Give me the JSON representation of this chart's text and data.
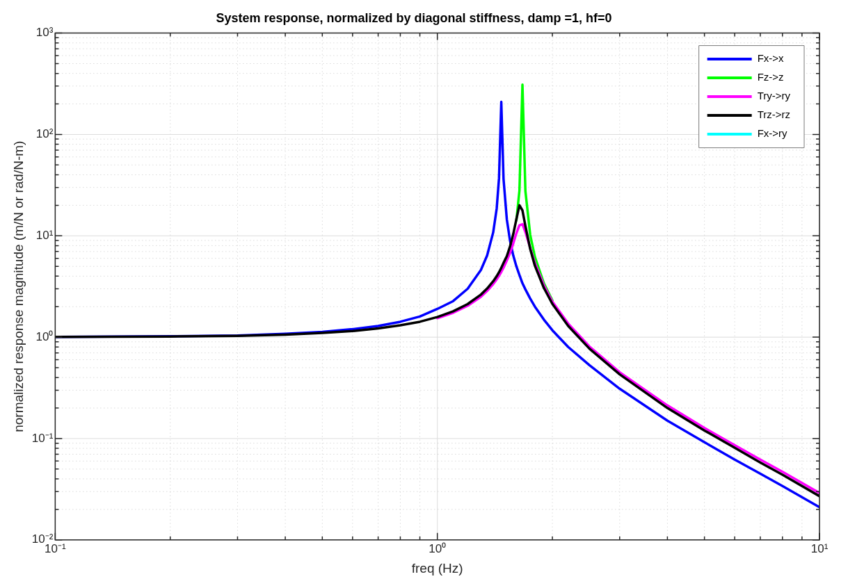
{
  "chart_data": {
    "type": "line",
    "title": "System response, normalized by diagonal stiffness, damp =1, hf=0",
    "xlabel": "freq (Hz)",
    "ylabel": "normalized response magnitude (m/N or rad/N-m)",
    "log": "xy",
    "grid": true,
    "legend": "top right",
    "marker": "none",
    "line_style": "solid",
    "xlim": [
      0.1,
      10
    ],
    "ylim": [
      0.01,
      1000
    ],
    "xticks": [
      {
        "value": 0.1,
        "label": "10⁻¹"
      },
      {
        "value": 0.2,
        "label": null
      },
      {
        "value": 0.3,
        "label": null
      },
      {
        "value": 0.4,
        "label": null
      },
      {
        "value": 0.5,
        "label": null
      },
      {
        "value": 0.6,
        "label": null
      },
      {
        "value": 0.7,
        "label": null
      },
      {
        "value": 0.8,
        "label": null
      },
      {
        "value": 0.9,
        "label": null
      },
      {
        "value": 1,
        "label": "10⁰"
      },
      {
        "value": 2,
        "label": null
      },
      {
        "value": 3,
        "label": null
      },
      {
        "value": 4,
        "label": null
      },
      {
        "value": 5,
        "label": null
      },
      {
        "value": 6,
        "label": null
      },
      {
        "value": 7,
        "label": null
      },
      {
        "value": 8,
        "label": null
      },
      {
        "value": 9,
        "label": null
      },
      {
        "value": 10,
        "label": "10¹"
      }
    ],
    "yticks": [
      {
        "value": 0.01,
        "label": "10⁻²"
      },
      {
        "value": 0.02,
        "label": null
      },
      {
        "value": 0.03,
        "label": null
      },
      {
        "value": 0.04,
        "label": null
      },
      {
        "value": 0.05,
        "label": null
      },
      {
        "value": 0.06,
        "label": null
      },
      {
        "value": 0.07,
        "label": null
      },
      {
        "value": 0.08,
        "label": null
      },
      {
        "value": 0.09,
        "label": null
      },
      {
        "value": 0.1,
        "label": "10⁻¹"
      },
      {
        "value": 0.2,
        "label": null
      },
      {
        "value": 0.3,
        "label": null
      },
      {
        "value": 0.4,
        "label": null
      },
      {
        "value": 0.5,
        "label": null
      },
      {
        "value": 0.6,
        "label": null
      },
      {
        "value": 0.7,
        "label": null
      },
      {
        "value": 0.8,
        "label": null
      },
      {
        "value": 0.9,
        "label": null
      },
      {
        "value": 1,
        "label": "10⁰"
      },
      {
        "value": 2,
        "label": null
      },
      {
        "value": 3,
        "label": null
      },
      {
        "value": 4,
        "label": null
      },
      {
        "value": 5,
        "label": null
      },
      {
        "value": 6,
        "label": null
      },
      {
        "value": 7,
        "label": null
      },
      {
        "value": 8,
        "label": null
      },
      {
        "value": 9,
        "label": null
      },
      {
        "value": 10,
        "label": "10¹"
      },
      {
        "value": 20,
        "label": null
      },
      {
        "value": 30,
        "label": null
      },
      {
        "value": 40,
        "label": null
      },
      {
        "value": 50,
        "label": null
      },
      {
        "value": 60,
        "label": null
      },
      {
        "value": 70,
        "label": null
      },
      {
        "value": 80,
        "label": null
      },
      {
        "value": 90,
        "label": null
      },
      {
        "value": 100,
        "label": "10²"
      },
      {
        "value": 200,
        "label": null
      },
      {
        "value": 300,
        "label": null
      },
      {
        "value": 400,
        "label": null
      },
      {
        "value": 500,
        "label": null
      },
      {
        "value": 600,
        "label": null
      },
      {
        "value": 700,
        "label": null
      },
      {
        "value": 800,
        "label": null
      },
      {
        "value": 900,
        "label": null
      },
      {
        "value": 1000,
        "label": "10³"
      }
    ],
    "x": [
      0.1,
      0.2,
      0.3,
      0.4,
      0.5,
      0.6,
      0.7,
      0.8,
      0.9,
      1.0,
      1.1,
      1.2,
      1.3,
      1.35,
      1.4,
      1.43,
      1.45,
      1.47,
      1.49,
      1.52,
      1.55,
      1.58,
      1.61,
      1.64,
      1.67,
      1.7,
      1.75,
      1.8,
      1.9,
      2.0,
      2.2,
      2.5,
      3,
      4,
      5,
      6,
      7,
      8,
      10
    ],
    "series": [
      {
        "name": "Fx->x",
        "color": "#0000ff",
        "values": [
          1.005,
          1.02,
          1.04,
          1.08,
          1.13,
          1.2,
          1.29,
          1.42,
          1.6,
          1.9,
          2.27,
          3.0,
          4.6,
          6.4,
          10.8,
          18.6,
          37,
          210,
          36.5,
          14.5,
          8.9,
          6.4,
          5.0,
          4.1,
          3.4,
          2.96,
          2.4,
          2.0,
          1.49,
          1.17,
          0.8,
          0.53,
          0.31,
          0.15,
          0.092,
          0.062,
          0.045,
          0.034,
          0.021
        ]
      },
      {
        "name": "Fz->z",
        "color": "#00ff00",
        "values": [
          null,
          null,
          null,
          null,
          null,
          null,
          null,
          null,
          null,
          null,
          null,
          null,
          null,
          null,
          null,
          null,
          null,
          null,
          null,
          null,
          null,
          null,
          14.2,
          28,
          310,
          27.6,
          10.2,
          6.2,
          3.4,
          2.3,
          null,
          null,
          null,
          null,
          null,
          null,
          null,
          null,
          null
        ]
      },
      {
        "name": "Try->ry",
        "color": "#ff00ff",
        "values": [
          null,
          null,
          null,
          null,
          null,
          null,
          null,
          null,
          null,
          1.54,
          1.74,
          2.04,
          2.5,
          2.86,
          3.34,
          3.72,
          4.03,
          4.4,
          4.84,
          5.7,
          6.8,
          8.4,
          10.6,
          12.7,
          13,
          10.9,
          7.6,
          5.4,
          3.25,
          2.24,
          1.36,
          0.81,
          0.45,
          0.212,
          0.127,
          0.086,
          0.062,
          0.047,
          0.029
        ]
      },
      {
        "name": "Trz->rz",
        "color": "#000000",
        "values": [
          1.004,
          1.015,
          1.03,
          1.06,
          1.1,
          1.15,
          1.22,
          1.31,
          1.42,
          1.58,
          1.8,
          2.12,
          2.63,
          3.02,
          3.56,
          4.0,
          4.37,
          4.83,
          5.4,
          6.3,
          7.9,
          10.4,
          14.6,
          20,
          17.8,
          12.5,
          7.4,
          5.06,
          3.06,
          2.13,
          1.29,
          0.77,
          0.43,
          0.2,
          0.12,
          0.081,
          0.058,
          0.044,
          0.027
        ]
      },
      {
        "name": "Fx->ry",
        "color": "#00ffff",
        "values": [
          null,
          null,
          null,
          null,
          null,
          null,
          null,
          null,
          null,
          null,
          null,
          null,
          null,
          null,
          null,
          null,
          null,
          null,
          null,
          null,
          null,
          null,
          null,
          null,
          null,
          null,
          null,
          null,
          null,
          null,
          null,
          null,
          null,
          null,
          null,
          null,
          null,
          null,
          null
        ]
      }
    ]
  }
}
